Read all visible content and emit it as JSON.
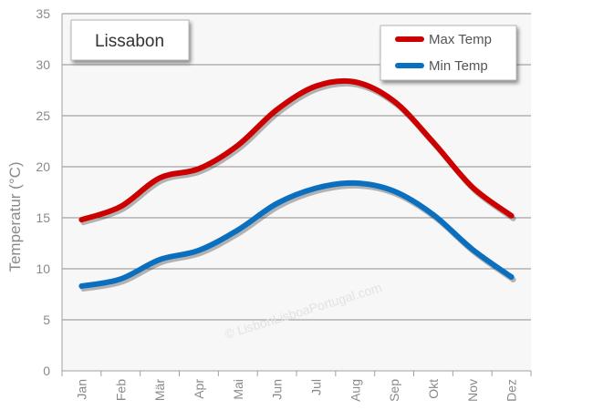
{
  "chart_data": {
    "type": "line",
    "title": "Lissabon",
    "xlabel": "",
    "ylabel": "Temperatur (°C)",
    "ylim": [
      0,
      35
    ],
    "yticks": [
      0,
      5,
      10,
      15,
      20,
      25,
      30,
      35
    ],
    "categories": [
      "Jan",
      "Feb",
      "Mär",
      "Apr",
      "Mai",
      "Jun",
      "Jul",
      "Aug",
      "Sep",
      "Okt",
      "Nov",
      "Dez"
    ],
    "series": [
      {
        "name": "Max Temp",
        "color": "#cc0000",
        "values": [
          14.8,
          16.1,
          18.9,
          19.8,
          22.1,
          25.6,
          27.9,
          28.3,
          26.4,
          22.4,
          18.0,
          15.2
        ]
      },
      {
        "name": "Min Temp",
        "color": "#0a6fbf",
        "values": [
          8.3,
          9.0,
          10.9,
          11.8,
          13.8,
          16.4,
          17.9,
          18.4,
          17.6,
          15.3,
          11.9,
          9.2
        ]
      }
    ],
    "grid": true,
    "legend_position": "top-right"
  },
  "watermark": "© LisbonLisboaPortugal.com"
}
